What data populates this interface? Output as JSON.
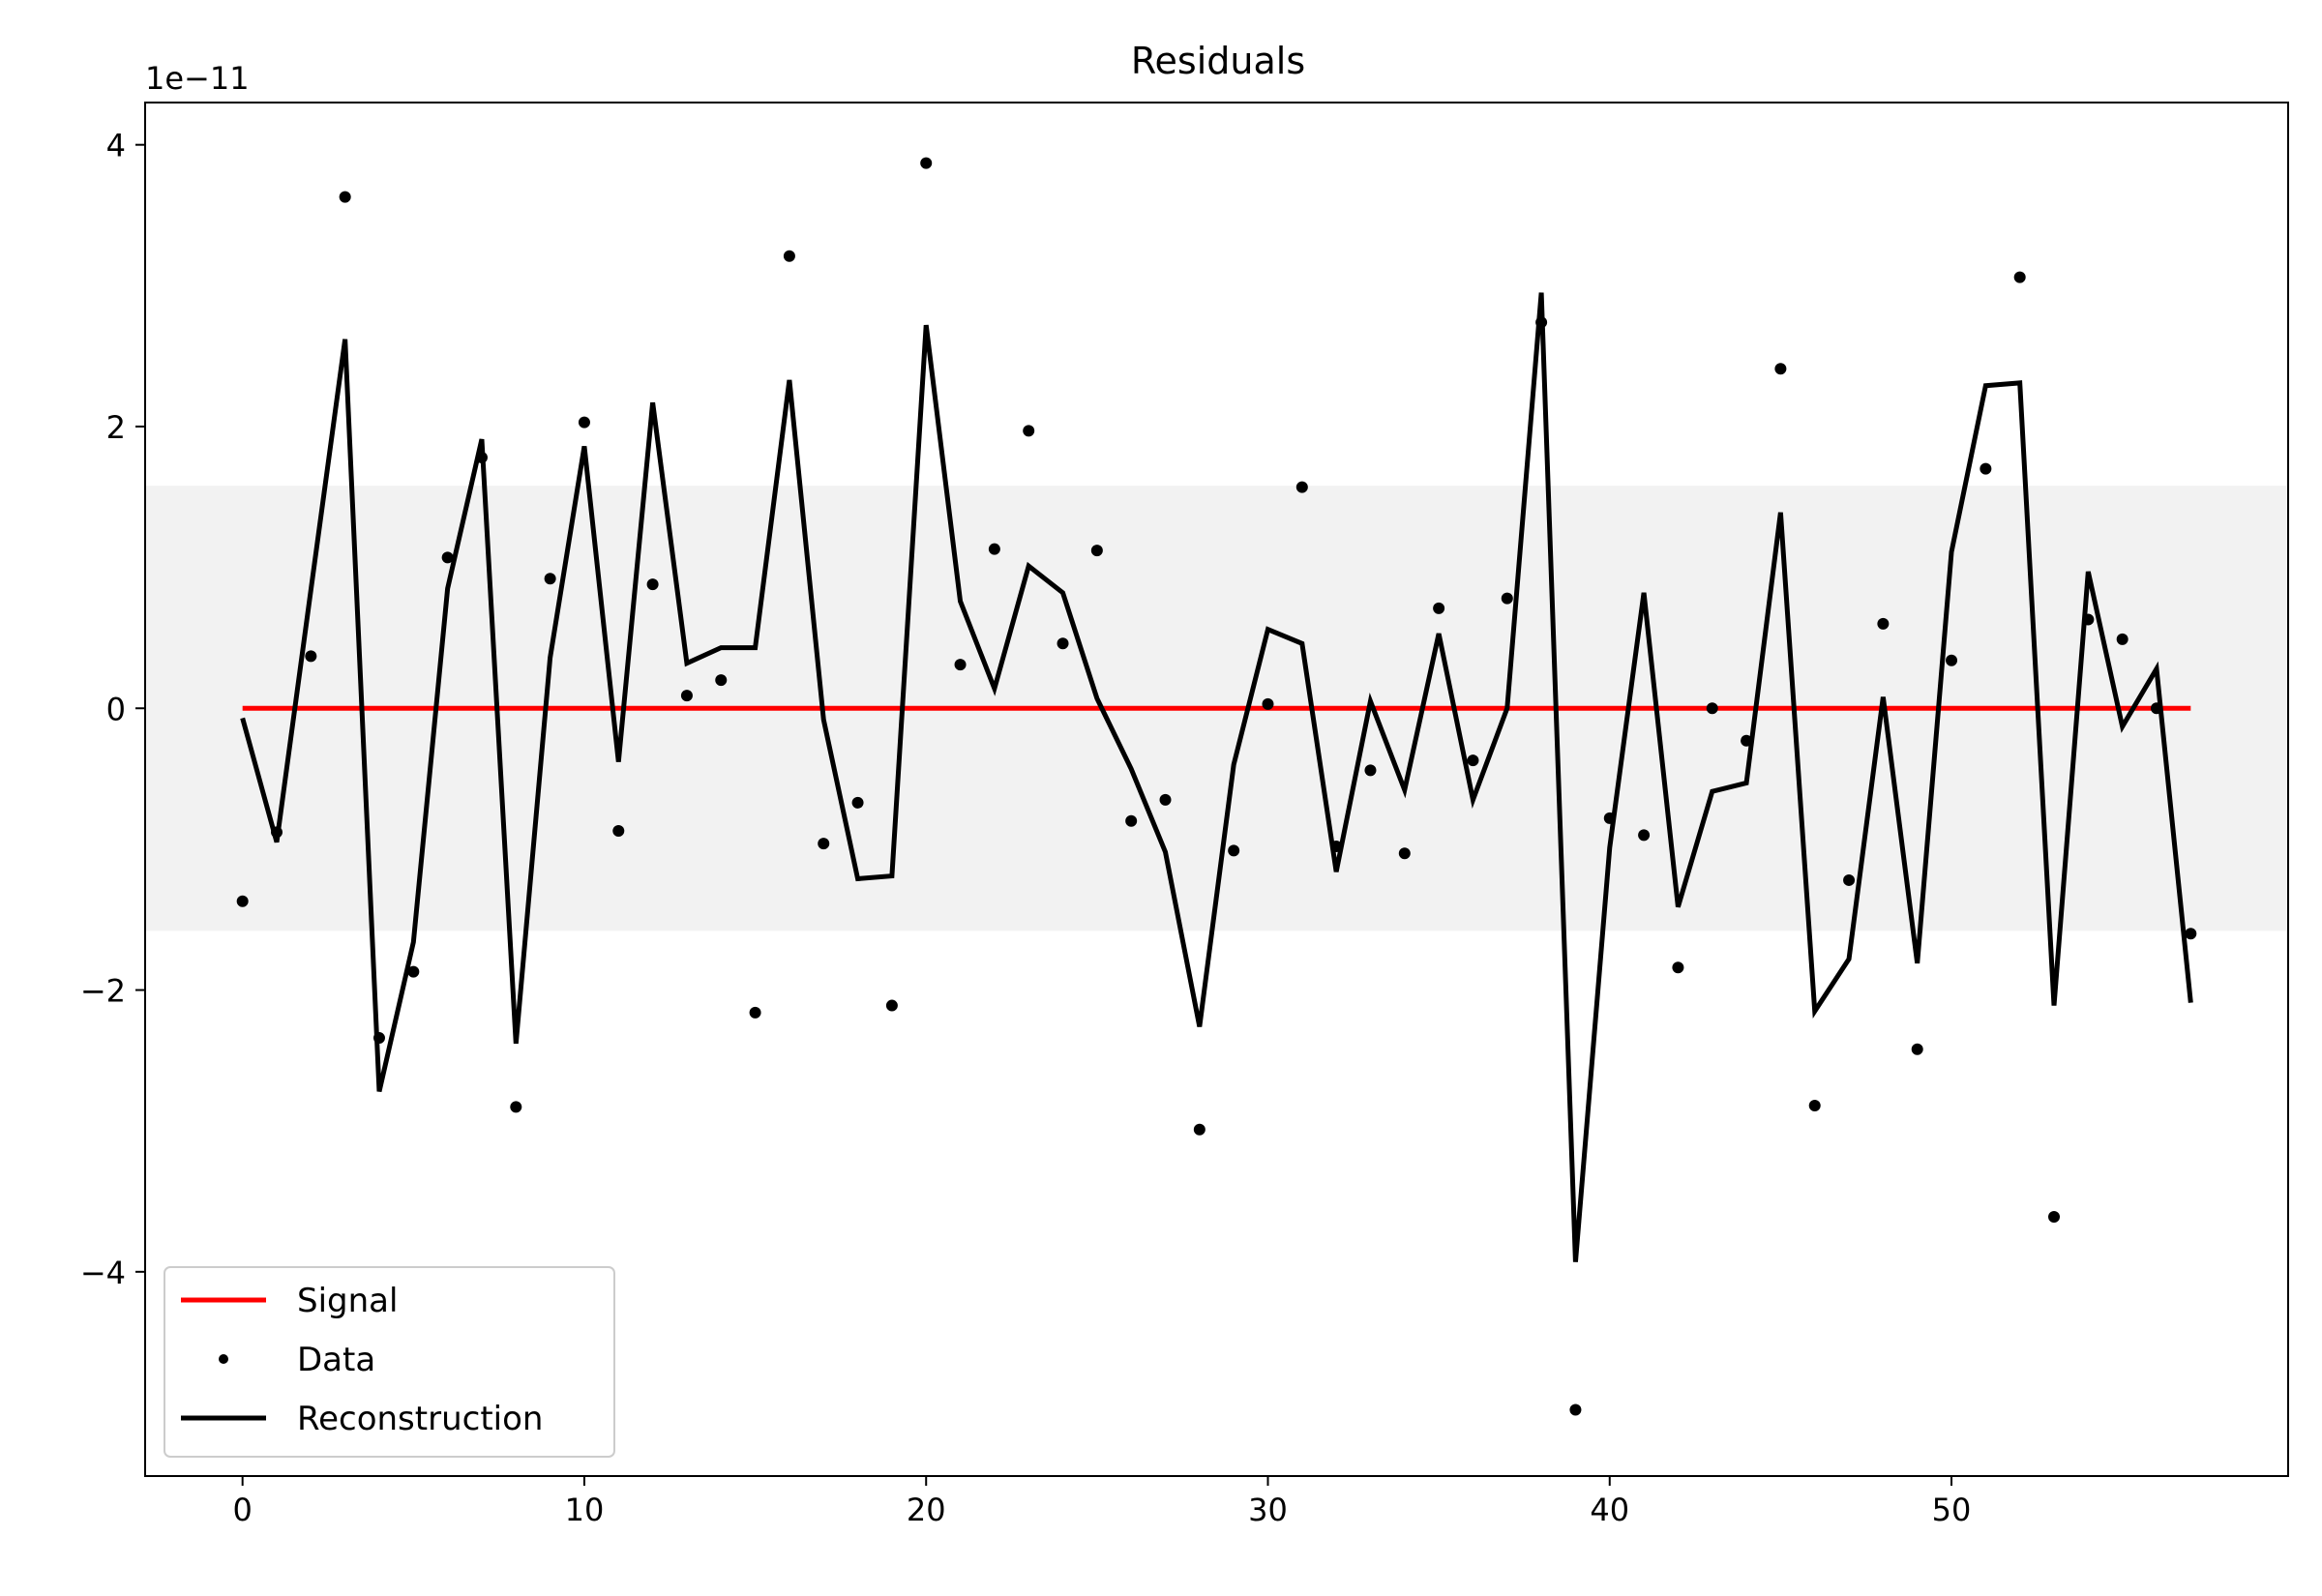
{
  "chart_data": {
    "type": "line",
    "title": "Residuals",
    "xlabel": "",
    "ylabel": "",
    "y_offset_label": "1e−11",
    "xlim": [
      -2.85,
      59.85
    ],
    "ylim": [
      -5.45,
      4.3
    ],
    "y_scale_factor": 1e-11,
    "xticks": [
      0,
      10,
      20,
      30,
      40,
      50
    ],
    "yticks": [
      -4,
      -2,
      0,
      2,
      4
    ],
    "ytick_labels": [
      "−4",
      "−2",
      "0",
      "2",
      "4"
    ],
    "grid": false,
    "band": {
      "y0": -1.58,
      "y1": 1.58,
      "color": "#f2f2f2"
    },
    "legend": {
      "placement": "lower-left",
      "entries": [
        "Signal",
        "Data",
        "Reconstruction"
      ]
    },
    "colors": {
      "signal": "#ff0000",
      "data": "#000000",
      "reconstruction": "#000000"
    },
    "x": [
      0,
      1,
      2,
      3,
      4,
      5,
      6,
      7,
      8,
      9,
      10,
      11,
      12,
      13,
      14,
      15,
      16,
      17,
      18,
      19,
      20,
      21,
      22,
      23,
      24,
      25,
      26,
      27,
      28,
      29,
      30,
      31,
      32,
      33,
      34,
      35,
      36,
      37,
      38,
      39,
      40,
      41,
      42,
      43,
      44,
      45,
      46,
      47,
      48,
      49,
      50,
      51,
      52,
      53,
      54,
      55,
      56,
      57
    ],
    "series": [
      {
        "name": "Signal",
        "style": "line",
        "values": [
          0,
          0,
          0,
          0,
          0,
          0,
          0,
          0,
          0,
          0,
          0,
          0,
          0,
          0,
          0,
          0,
          0,
          0,
          0,
          0,
          0,
          0,
          0,
          0,
          0,
          0,
          0,
          0,
          0,
          0,
          0,
          0,
          0,
          0,
          0,
          0,
          0,
          0,
          0,
          0,
          0,
          0,
          0,
          0,
          0,
          0,
          0,
          0,
          0,
          0,
          0,
          0,
          0,
          0,
          0,
          0,
          0,
          0
        ]
      },
      {
        "name": "Data",
        "style": "points",
        "values": [
          -1.37,
          -0.88,
          0.37,
          3.63,
          -2.34,
          -1.87,
          1.07,
          1.78,
          -2.83,
          0.92,
          2.03,
          -0.87,
          0.88,
          0.09,
          0.2,
          -2.16,
          3.21,
          -0.96,
          -0.67,
          -2.11,
          3.87,
          0.31,
          1.13,
          1.97,
          0.46,
          1.12,
          -0.8,
          -0.65,
          -2.99,
          -1.01,
          0.03,
          1.57,
          -0.98,
          -0.44,
          -1.03,
          0.71,
          -0.37,
          0.78,
          2.74,
          -4.98,
          -0.78,
          -0.9,
          -1.84,
          0.0,
          -0.23,
          2.41,
          -2.82,
          -1.22,
          0.6,
          -2.42,
          0.34,
          1.7,
          3.06,
          -3.61,
          0.63,
          0.49,
          0.0,
          -1.6
        ]
      },
      {
        "name": "Reconstruction",
        "style": "line",
        "values": [
          -0.07,
          -0.95,
          0.84,
          2.62,
          -2.72,
          -1.66,
          0.85,
          1.91,
          -2.38,
          0.36,
          1.86,
          -0.38,
          2.17,
          0.32,
          0.43,
          0.43,
          2.33,
          -0.08,
          -1.21,
          -1.19,
          2.72,
          0.76,
          0.14,
          1.01,
          0.82,
          0.07,
          -0.43,
          -1.02,
          -2.26,
          -0.4,
          0.56,
          0.46,
          -1.16,
          0.05,
          -0.58,
          0.53,
          -0.65,
          0.0,
          2.95,
          -3.93,
          -0.99,
          0.82,
          -1.41,
          -0.59,
          -0.53,
          1.39,
          -2.15,
          -1.78,
          0.08,
          -1.81,
          1.11,
          2.29,
          2.31,
          -2.11,
          0.97,
          -0.13,
          0.28,
          -2.09
        ]
      }
    ]
  }
}
